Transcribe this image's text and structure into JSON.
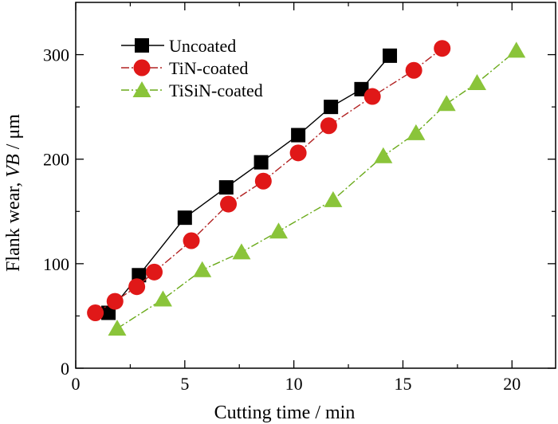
{
  "chart_data": {
    "type": "line",
    "xlabel": "Cutting time / min",
    "ylabel": {
      "prefix": "Flank wear, ",
      "italic": "VB",
      "suffix": " / μm"
    },
    "xlim": [
      0,
      22
    ],
    "ylim": [
      0,
      350
    ],
    "xticks": [
      0,
      5,
      10,
      15,
      20
    ],
    "yticks": [
      0,
      100,
      200,
      300
    ],
    "grid": false,
    "legend_position": "top-left",
    "series": [
      {
        "name": "Uncoated",
        "marker": "square",
        "line_color": "#000000",
        "marker_color": "#000000",
        "x": [
          1.5,
          2.9,
          5.0,
          6.9,
          8.5,
          10.2,
          11.7,
          13.1,
          14.4
        ],
        "y": [
          53,
          89,
          144,
          173,
          197,
          223,
          250,
          267,
          299
        ]
      },
      {
        "name": "TiN-coated",
        "marker": "circle",
        "line_color": "#b22222",
        "marker_color": "#e01818",
        "x": [
          0.9,
          1.8,
          2.8,
          3.6,
          5.3,
          7.0,
          8.6,
          10.2,
          11.6,
          13.6,
          15.5,
          16.8
        ],
        "y": [
          53,
          64,
          78,
          92,
          122,
          157,
          179,
          206,
          232,
          260,
          285,
          306
        ]
      },
      {
        "name": "TiSiN-coated",
        "marker": "triangle",
        "line_color": "#6aaa1a",
        "marker_color": "#8ac43a",
        "x": [
          1.9,
          4.0,
          5.8,
          7.6,
          9.3,
          11.8,
          14.1,
          15.6,
          17.0,
          18.4,
          20.2
        ],
        "y": [
          38,
          66,
          94,
          111,
          131,
          161,
          203,
          225,
          253,
          273,
          304
        ]
      }
    ]
  }
}
